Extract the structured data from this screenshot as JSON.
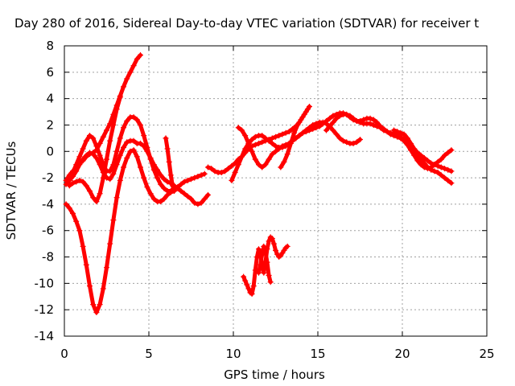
{
  "chart_data": {
    "type": "scatter",
    "title": "Day 280 of 2016, Sidereal Day-to-day VTEC variation (SDTVAR) for receiver t",
    "xlabel": "GPS time / hours",
    "ylabel": "SDTVAR / TECUs",
    "xlim": [
      0,
      25
    ],
    "ylim": [
      -14,
      8
    ],
    "xticks": [
      0,
      5,
      10,
      15,
      20,
      25
    ],
    "yticks": [
      -14,
      -12,
      -10,
      -8,
      -6,
      -4,
      -2,
      0,
      2,
      4,
      6,
      8
    ],
    "grid": true,
    "marker": "+",
    "color": "#ff0000",
    "series": [
      {
        "x": [
          0.1,
          0.3,
          0.5,
          0.7,
          0.9,
          1.1,
          1.3,
          1.5,
          1.7,
          1.9,
          2.1,
          2.3,
          2.5,
          2.7,
          2.9,
          3.1,
          3.3,
          3.5,
          3.7,
          3.9,
          4.1,
          4.3,
          4.5
        ],
        "y": [
          -2.2,
          -1.8,
          -1.5,
          -1.2,
          -0.9,
          -0.7,
          -0.4,
          -0.2,
          -0.1,
          0.1,
          0.6,
          1.1,
          1.6,
          2.1,
          2.8,
          3.5,
          4.2,
          4.9,
          5.5,
          6.0,
          6.5,
          7.0,
          7.3
        ]
      },
      {
        "x": [
          0.3,
          0.5,
          0.7,
          0.9,
          1.1,
          1.3,
          1.5,
          1.7,
          1.9,
          2.1,
          2.3,
          2.5,
          2.7,
          2.9,
          3.1,
          3.3,
          3.5,
          3.7,
          3.9,
          4.1,
          4.3,
          4.5,
          4.7,
          4.9,
          5.1,
          5.3,
          5.5,
          5.7,
          5.9,
          6.1,
          6.3,
          6.5,
          6.7,
          6.9,
          7.1,
          7.3,
          7.5,
          7.7,
          7.9,
          8.1,
          8.3
        ],
        "y": [
          -2.0,
          -1.6,
          -1.0,
          -0.4,
          0.2,
          0.8,
          1.2,
          1.0,
          0.4,
          -0.3,
          -1.0,
          -1.5,
          -1.5,
          -1.0,
          0.0,
          1.0,
          1.8,
          2.3,
          2.6,
          2.6,
          2.4,
          2.0,
          1.2,
          0.3,
          -0.6,
          -1.4,
          -2.0,
          -2.5,
          -2.8,
          -3.0,
          -3.0,
          -2.9,
          -2.7,
          -2.5,
          -2.3,
          -2.2,
          -2.1,
          -2.0,
          -1.9,
          -1.8,
          -1.7
        ]
      },
      {
        "x": [
          0.1,
          0.3,
          0.5,
          0.7,
          0.9,
          1.1,
          1.3,
          1.5,
          1.7,
          1.9,
          2.1,
          2.3,
          2.5,
          2.7,
          2.9,
          3.1,
          3.3,
          3.5,
          3.7,
          3.9,
          4.1,
          4.3,
          4.5,
          4.7,
          4.9,
          5.1,
          5.3,
          5.5,
          5.7,
          5.9,
          6.1,
          6.3,
          6.5,
          6.7,
          6.9,
          7.1,
          7.3,
          7.5,
          7.7,
          7.9,
          8.1,
          8.3,
          8.5
        ],
        "y": [
          -2.5,
          -2.2,
          -1.9,
          -1.5,
          -1.0,
          -0.6,
          -0.3,
          -0.1,
          -0.2,
          -0.5,
          -1.0,
          -1.6,
          -2.0,
          -2.1,
          -1.7,
          -1.0,
          -0.3,
          0.3,
          0.7,
          0.8,
          0.8,
          0.6,
          0.6,
          0.4,
          0.0,
          -0.5,
          -1.0,
          -1.4,
          -1.8,
          -2.1,
          -2.3,
          -2.4,
          -2.6,
          -2.8,
          -3.0,
          -3.2,
          -3.4,
          -3.6,
          -3.9,
          -4.0,
          -3.9,
          -3.6,
          -3.3
        ]
      },
      {
        "x": [
          0.1,
          0.3,
          0.5,
          0.7,
          0.9,
          1.1,
          1.3,
          1.5,
          1.7,
          1.9,
          2.1,
          2.3,
          2.5,
          2.7,
          2.9,
          3.1,
          3.3,
          3.5,
          3.7,
          3.9,
          4.1,
          4.3,
          4.5,
          4.7,
          4.9,
          5.1,
          5.3,
          5.5,
          5.7,
          5.9,
          6.1,
          6.3,
          6.5
        ],
        "y": [
          -4.0,
          -4.3,
          -4.7,
          -5.3,
          -6.0,
          -7.2,
          -8.6,
          -10.2,
          -11.6,
          -12.2,
          -11.6,
          -10.4,
          -8.8,
          -7.0,
          -5.2,
          -3.5,
          -2.2,
          -1.2,
          -0.5,
          0.0,
          0.1,
          -0.4,
          -1.2,
          -2.0,
          -2.7,
          -3.2,
          -3.6,
          -3.8,
          -3.8,
          -3.6,
          -3.3,
          -3.1,
          -3.0
        ]
      },
      {
        "x": [
          0.3,
          0.5,
          0.7,
          0.9,
          1.1,
          1.3,
          1.5,
          1.7,
          1.9,
          2.1,
          2.3,
          2.5,
          2.7,
          2.9,
          3.1,
          3.3
        ],
        "y": [
          -2.6,
          -2.4,
          -2.3,
          -2.2,
          -2.3,
          -2.6,
          -3.0,
          -3.5,
          -3.8,
          -3.2,
          -2.0,
          -0.6,
          0.8,
          2.0,
          3.2,
          4.1
        ]
      },
      {
        "x": [
          8.5,
          8.7,
          8.9,
          9.1,
          9.3,
          9.5,
          9.7,
          9.9,
          10.1,
          10.3,
          10.5,
          10.7,
          10.9,
          11.1,
          11.3,
          11.5,
          11.7,
          11.9,
          12.1,
          12.3,
          12.5,
          12.7,
          12.9,
          13.1,
          13.3,
          13.5,
          13.7,
          13.9,
          14.1,
          14.3,
          14.5
        ],
        "y": [
          -1.2,
          -1.3,
          -1.5,
          -1.6,
          -1.6,
          -1.5,
          -1.3,
          -1.1,
          -0.9,
          -0.6,
          -0.4,
          -0.1,
          0.2,
          0.4,
          0.5,
          0.6,
          0.7,
          0.8,
          0.9,
          1.0,
          1.1,
          1.2,
          1.3,
          1.4,
          1.5,
          1.7,
          1.9,
          2.2,
          2.6,
          3.0,
          3.4
        ]
      },
      {
        "x": [
          9.9,
          10.1,
          10.3,
          10.5,
          10.7,
          10.9,
          11.1,
          11.3,
          11.5,
          11.7,
          11.9,
          12.1,
          12.3,
          12.5,
          12.7,
          12.9,
          13.1,
          13.3,
          13.5,
          13.7,
          13.9,
          14.1,
          14.3,
          14.5,
          14.7,
          14.9,
          15.1,
          15.3,
          15.5,
          15.7,
          15.9,
          16.1,
          16.3,
          16.5,
          16.7,
          16.9,
          17.1,
          17.3,
          17.5
        ],
        "y": [
          -2.2,
          -1.6,
          -1.0,
          -0.4,
          0.2,
          0.6,
          0.9,
          1.1,
          1.2,
          1.2,
          1.0,
          0.8,
          0.6,
          0.4,
          0.3,
          0.3,
          0.4,
          0.6,
          0.8,
          1.0,
          1.2,
          1.4,
          1.6,
          1.8,
          2.0,
          2.1,
          2.2,
          2.2,
          2.1,
          1.9,
          1.6,
          1.3,
          1.0,
          0.8,
          0.7,
          0.6,
          0.6,
          0.7,
          0.9
        ]
      },
      {
        "x": [
          10.3,
          10.5,
          10.7,
          10.9,
          11.1,
          11.3,
          11.5,
          11.7,
          11.9,
          12.1,
          12.3,
          12.5,
          12.7,
          12.9,
          13.1,
          13.3,
          13.5,
          13.7,
          13.9,
          14.1,
          14.3,
          14.5,
          14.7,
          14.9,
          15.1,
          15.3,
          15.5,
          15.7,
          15.9,
          16.1,
          16.3,
          16.5,
          16.7,
          16.9,
          17.1,
          17.3,
          17.5,
          17.7,
          17.9,
          18.1,
          18.3,
          18.5,
          18.7,
          18.9,
          19.1,
          19.3,
          19.5,
          19.7,
          19.9,
          20.1,
          20.3,
          20.5,
          20.7,
          20.9,
          21.1,
          21.3,
          21.5,
          21.7,
          21.9,
          22.1,
          22.3,
          22.5,
          22.7,
          22.9
        ],
        "y": [
          1.8,
          1.6,
          1.2,
          0.6,
          0.0,
          -0.6,
          -1.0,
          -1.2,
          -1.0,
          -0.6,
          -0.2,
          0.0,
          0.2,
          0.4,
          0.5,
          0.6,
          0.8,
          1.0,
          1.2,
          1.4,
          1.5,
          1.6,
          1.7,
          1.8,
          1.9,
          2.1,
          2.3,
          2.5,
          2.7,
          2.8,
          2.9,
          2.9,
          2.8,
          2.6,
          2.4,
          2.3,
          2.3,
          2.4,
          2.5,
          2.5,
          2.4,
          2.2,
          1.9,
          1.7,
          1.5,
          1.3,
          1.2,
          1.1,
          1.0,
          0.8,
          0.5,
          0.1,
          -0.3,
          -0.7,
          -1.0,
          -1.2,
          -1.3,
          -1.2,
          -1.0,
          -0.8,
          -0.6,
          -0.3,
          -0.1,
          0.1
        ]
      },
      {
        "x": [
          15.5,
          15.7,
          15.9,
          16.1,
          16.3,
          16.5,
          16.7,
          16.9,
          17.1,
          17.3,
          17.5,
          17.7,
          17.9,
          18.1,
          18.3,
          18.5,
          18.7,
          18.9,
          19.1,
          19.3,
          19.5,
          19.7,
          19.9,
          20.1,
          20.3,
          20.5,
          20.7,
          20.9,
          21.1,
          21.3,
          21.5,
          21.7,
          21.9,
          22.1,
          22.3,
          22.5,
          22.7,
          22.9
        ],
        "y": [
          1.6,
          1.9,
          2.2,
          2.5,
          2.7,
          2.8,
          2.8,
          2.7,
          2.5,
          2.3,
          2.2,
          2.1,
          2.1,
          2.1,
          2.0,
          1.9,
          1.8,
          1.6,
          1.5,
          1.4,
          1.3,
          1.2,
          1.1,
          0.9,
          0.6,
          0.3,
          0.0,
          -0.3,
          -0.6,
          -0.9,
          -1.2,
          -1.4,
          -1.5,
          -1.6,
          -1.8,
          -2.0,
          -2.2,
          -2.4
        ]
      },
      {
        "x": [
          19.5,
          19.7,
          19.9,
          20.1,
          20.3,
          20.5,
          20.7,
          20.9,
          21.1,
          21.3,
          21.5,
          21.7,
          21.9,
          22.1,
          22.3,
          22.5,
          22.7,
          22.9
        ],
        "y": [
          1.6,
          1.5,
          1.4,
          1.3,
          1.0,
          0.6,
          0.2,
          -0.1,
          -0.3,
          -0.5,
          -0.7,
          -0.9,
          -1.0,
          -1.1,
          -1.2,
          -1.3,
          -1.4,
          -1.5
        ]
      },
      {
        "x": [
          10.6,
          10.7,
          10.8,
          10.9,
          11.0,
          11.1,
          11.2,
          11.3,
          11.4,
          11.5,
          11.6,
          11.7,
          11.8,
          11.9,
          12.0,
          12.1,
          12.2,
          12.3,
          12.4,
          12.5,
          12.6,
          12.7,
          12.8,
          12.9,
          13.0,
          13.1,
          13.2
        ],
        "y": [
          -9.5,
          -9.8,
          -10.1,
          -10.4,
          -10.7,
          -10.8,
          -10.2,
          -9.0,
          -8.0,
          -7.4,
          -7.8,
          -8.6,
          -9.2,
          -8.4,
          -7.4,
          -6.8,
          -6.5,
          -6.6,
          -7.0,
          -7.5,
          -7.8,
          -8.0,
          -7.9,
          -7.7,
          -7.5,
          -7.3,
          -7.2
        ]
      },
      {
        "x": [
          11.5,
          11.6,
          11.7,
          11.8,
          11.9,
          12.0,
          12.1,
          12.2
        ],
        "y": [
          -9.2,
          -8.6,
          -7.8,
          -7.2,
          -7.6,
          -8.4,
          -9.4,
          -9.9
        ]
      },
      {
        "x": [
          6.0,
          6.1,
          6.2,
          6.3,
          6.4,
          6.5
        ],
        "y": [
          1.0,
          0.2,
          -0.8,
          -1.8,
          -2.6,
          -3.0
        ]
      },
      {
        "x": [
          12.8,
          13.0,
          13.2,
          13.4,
          13.6,
          13.8,
          14.0,
          14.2,
          14.4
        ],
        "y": [
          -1.2,
          -0.8,
          -0.2,
          0.6,
          1.4,
          2.0,
          2.4,
          2.8,
          3.2
        ]
      }
    ]
  }
}
